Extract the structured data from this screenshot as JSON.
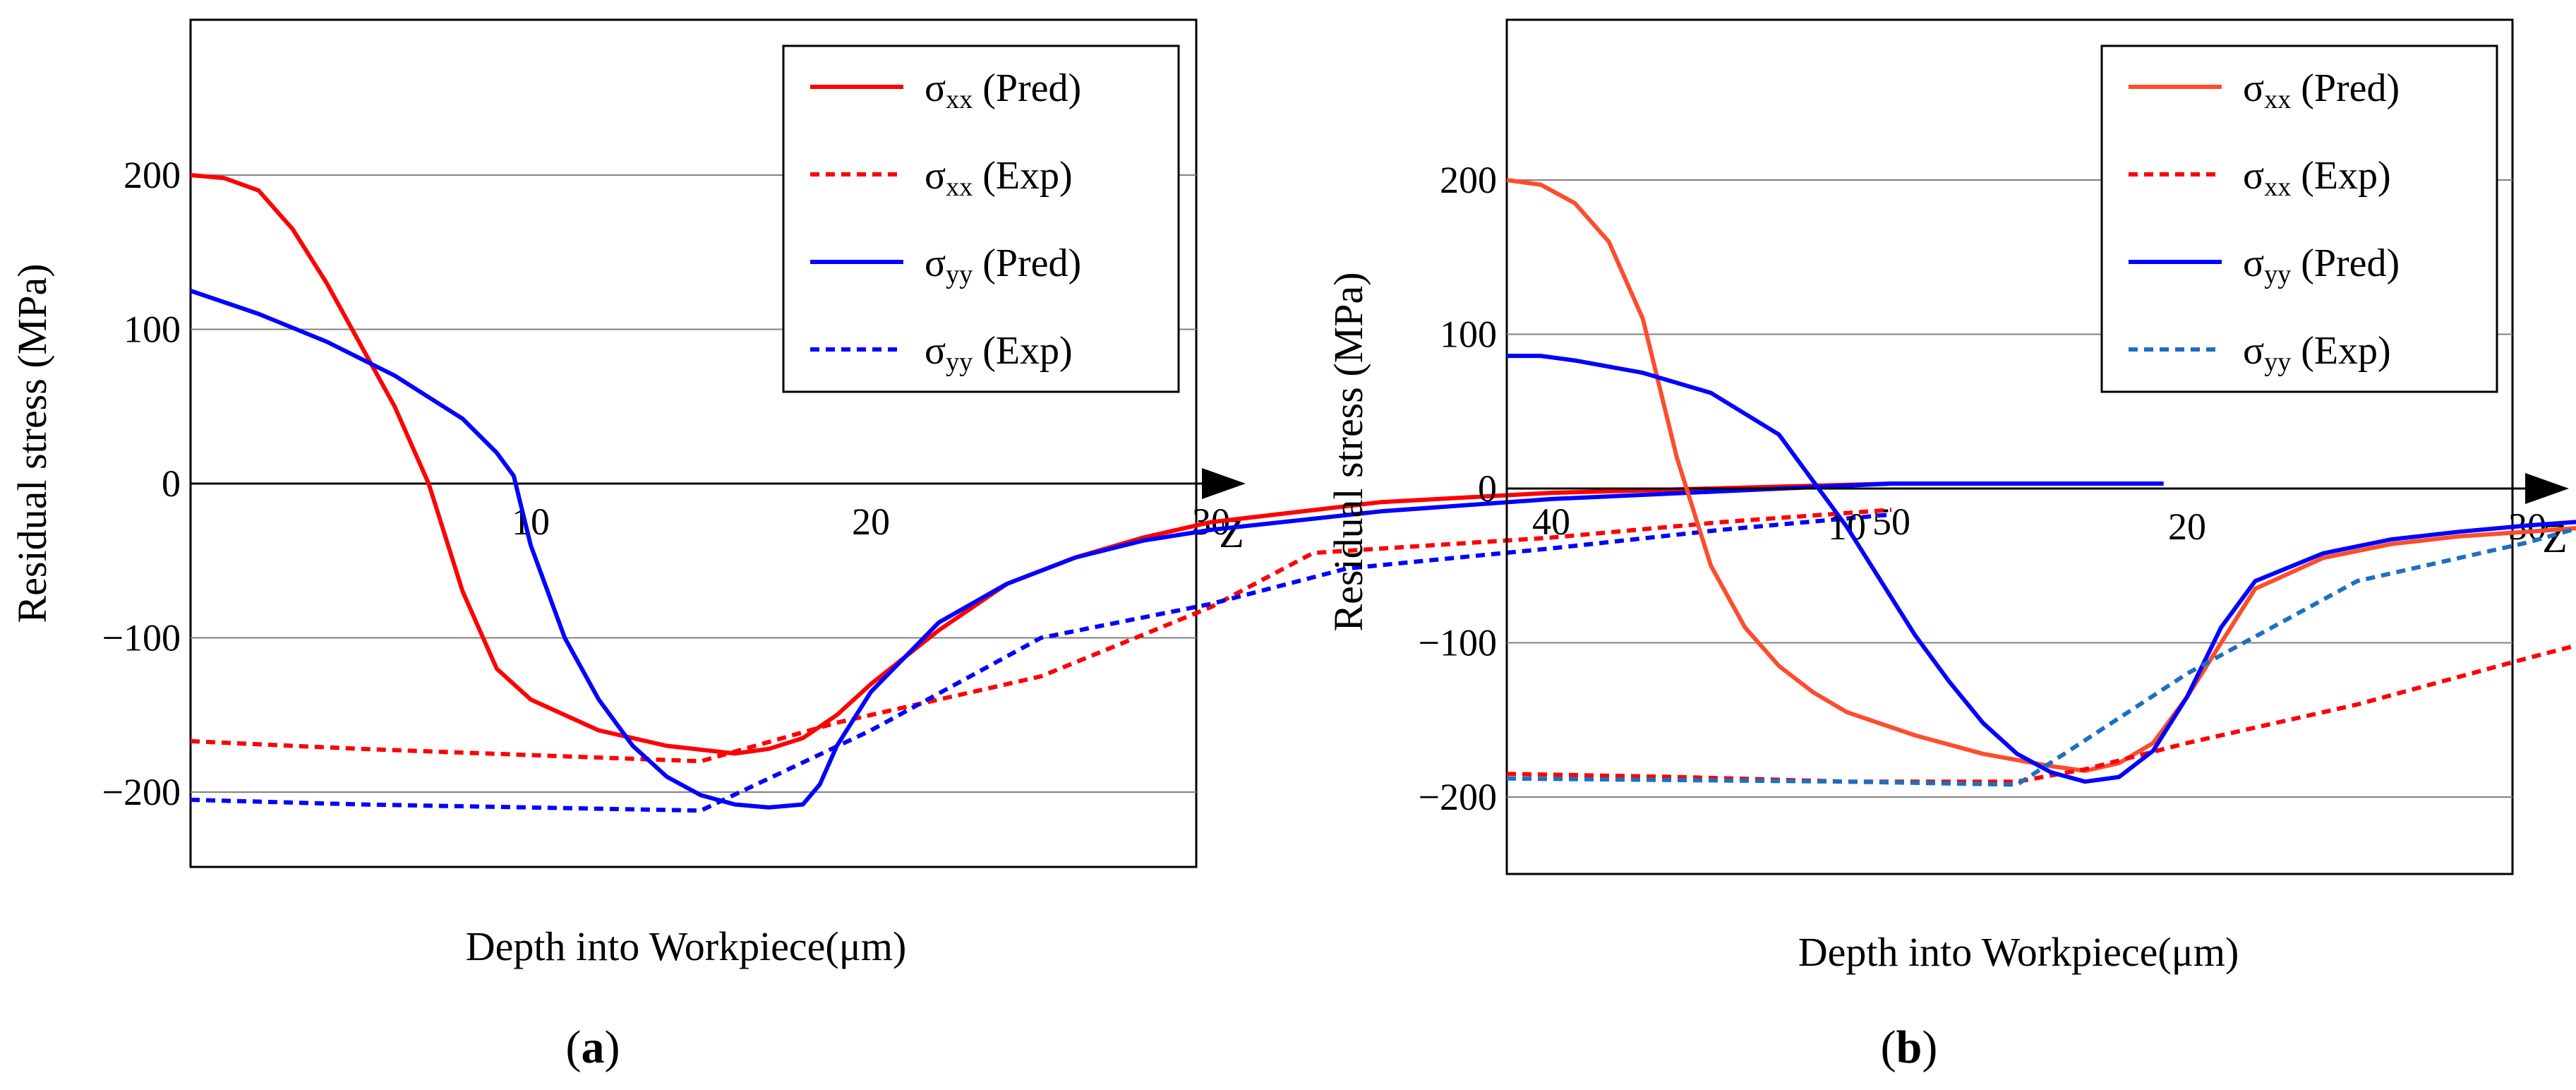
{
  "chart_data": [
    {
      "type": "line",
      "panel_label": "a",
      "xlabel": "Depth into Workpiece(μm)",
      "ylabel": "Residual stress  (MPa)",
      "axis_arrow_label": "Z",
      "xticks": [
        "10",
        "20",
        "30",
        "40",
        "50"
      ],
      "yticks": [
        "200",
        "100",
        "0",
        "−100",
        "−200"
      ],
      "xlim": [
        0,
        58
      ],
      "ylim": [
        -250,
        300
      ],
      "grid": "horizontal",
      "legend_position": "top-right",
      "series": [
        {
          "name_main": "σ",
          "name_sub": "xx",
          "name_suffix": " (Pred)",
          "color": "#ff0000",
          "style": "solid",
          "x": [
            0,
            1,
            2,
            3,
            4,
            5,
            6,
            7,
            8,
            9,
            10,
            12,
            14,
            16,
            17,
            18,
            19,
            20,
            22,
            24,
            26,
            28,
            30,
            35,
            40,
            45,
            50,
            55,
            58
          ],
          "y": [
            200,
            198,
            190,
            165,
            130,
            90,
            50,
            0,
            -70,
            -120,
            -140,
            -160,
            -170,
            -175,
            -172,
            -165,
            -150,
            -130,
            -95,
            -65,
            -48,
            -35,
            -25,
            -12,
            -6,
            -3,
            0,
            0,
            0
          ]
        },
        {
          "name_main": "σ",
          "name_sub": "xx",
          "name_suffix": " (Exp)",
          "color": "#ff0000",
          "style": "dashed",
          "x": [
            0,
            5,
            10,
            15,
            19,
            25,
            30,
            33,
            40,
            45,
            50
          ],
          "y": [
            -167,
            -172,
            -176,
            -180,
            -155,
            -125,
            -80,
            -45,
            -35,
            -25,
            -17
          ]
        },
        {
          "name_main": "σ",
          "name_sub": "yy",
          "name_suffix": " (Pred)",
          "color": "#0000ff",
          "style": "solid",
          "x": [
            0,
            2,
            4,
            6,
            8,
            9,
            9.5,
            10,
            11,
            12,
            13,
            14,
            15,
            16,
            17,
            18,
            18.5,
            19,
            20,
            22,
            24,
            26,
            28,
            30,
            35,
            40,
            45,
            50,
            55,
            58
          ],
          "y": [
            125,
            110,
            92,
            70,
            42,
            20,
            5,
            -40,
            -100,
            -140,
            -170,
            -190,
            -202,
            -208,
            -210,
            -208,
            -195,
            -170,
            -135,
            -90,
            -65,
            -48,
            -37,
            -30,
            -18,
            -10,
            -5,
            0,
            0,
            0
          ]
        },
        {
          "name_main": "σ",
          "name_sub": "yy",
          "name_suffix": " (Exp)",
          "color": "#0000ff",
          "style": "dashed",
          "x": [
            0,
            5,
            10,
            15,
            20,
            25,
            30,
            34,
            40,
            45,
            50
          ],
          "y": [
            -205,
            -208,
            -210,
            -212,
            -160,
            -100,
            -78,
            -55,
            -42,
            -30,
            -20
          ]
        }
      ]
    },
    {
      "type": "line",
      "panel_label": "b",
      "xlabel": "Depth into Workpiece(μm)",
      "ylabel": "Residual stress  (MPa)",
      "axis_arrow_label": "Z",
      "xticks": [
        "10",
        "20",
        "30",
        "40",
        "50"
      ],
      "yticks": [
        "200",
        "100",
        "0",
        "−100",
        "−200"
      ],
      "xlim": [
        0,
        58
      ],
      "ylim": [
        -250,
        300
      ],
      "grid": "horizontal",
      "legend_position": "top-right",
      "series": [
        {
          "name_main": "σ",
          "name_sub": "xx",
          "name_suffix": " (Pred)",
          "color": "#ff4d2e",
          "style": "solid",
          "x": [
            0,
            1,
            2,
            3,
            4,
            5,
            6,
            7,
            8,
            9,
            10,
            12,
            14,
            16,
            17,
            18,
            19,
            20,
            22,
            24,
            26,
            28,
            30,
            35,
            40,
            45,
            50,
            55,
            58
          ],
          "y": [
            200,
            197,
            185,
            160,
            110,
            20,
            -50,
            -90,
            -115,
            -132,
            -145,
            -160,
            -172,
            -180,
            -183,
            -178,
            -165,
            -135,
            -65,
            -45,
            -36,
            -31,
            -28,
            -20,
            -10,
            -4,
            0,
            0,
            0
          ]
        },
        {
          "name_main": "σ",
          "name_sub": "xx",
          "name_suffix": " (Exp)",
          "color": "#ff0000",
          "style": "dashed",
          "x": [
            0,
            5,
            10,
            15,
            17,
            20,
            25,
            30,
            34,
            40,
            45,
            50
          ],
          "y": [
            -185,
            -187,
            -190,
            -190,
            -182,
            -165,
            -140,
            -110,
            -87,
            -84,
            -81,
            -78
          ]
        },
        {
          "name_main": "σ",
          "name_sub": "yy",
          "name_suffix": " (Pred)",
          "color": "#0000ff",
          "style": "solid",
          "x": [
            0,
            1,
            2,
            4,
            6,
            8,
            9,
            10,
            11,
            12,
            13,
            14,
            15,
            16,
            17,
            18,
            19,
            20,
            21,
            22,
            24,
            26,
            28,
            30,
            35,
            40,
            45,
            50,
            55,
            58
          ],
          "y": [
            86,
            86,
            83,
            75,
            62,
            35,
            5,
            -25,
            -60,
            -95,
            -125,
            -152,
            -172,
            -184,
            -190,
            -187,
            -170,
            -135,
            -90,
            -60,
            -42,
            -33,
            -28,
            -24,
            -16,
            -8,
            -3,
            0,
            0,
            0
          ]
        },
        {
          "name_main": "σ",
          "name_sub": "yy",
          "name_suffix": " (Exp)",
          "color": "#1f6fbf",
          "style": "dashed",
          "x": [
            0,
            5,
            10,
            15,
            20,
            25,
            30,
            34,
            38,
            42,
            46,
            50
          ],
          "y": [
            -188,
            -189,
            -190,
            -192,
            -120,
            -60,
            -35,
            -10,
            -18,
            -22,
            -28,
            -35
          ]
        }
      ]
    }
  ]
}
